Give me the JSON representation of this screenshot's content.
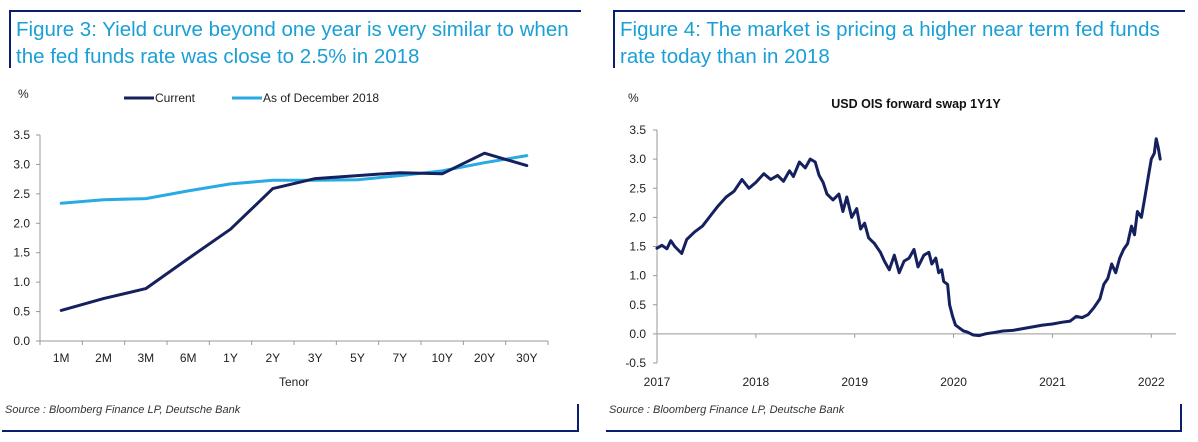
{
  "colors": {
    "title": "#1a9fd6",
    "navy": "#15205e",
    "lightblue": "#29aae2",
    "rule": "#0a1e6e"
  },
  "chart_data": [
    {
      "type": "line",
      "title": "Figure 3: Yield curve beyond one year is very similar to when the fed funds rate was close to 2.5% in 2018",
      "unit": "%",
      "xlabel": "Tenor",
      "categories": [
        "1M",
        "2M",
        "3M",
        "6M",
        "1Y",
        "2Y",
        "3Y",
        "5Y",
        "7Y",
        "10Y",
        "20Y",
        "30Y"
      ],
      "ylim": [
        0,
        3.5
      ],
      "yticks": [
        "0.0",
        "0.5",
        "1.0",
        "1.5",
        "2.0",
        "2.5",
        "3.0",
        "3.5"
      ],
      "series": [
        {
          "name": "Current",
          "color": "#15205e",
          "values": [
            0.52,
            0.72,
            0.89,
            1.4,
            1.9,
            2.59,
            2.76,
            2.81,
            2.86,
            2.84,
            3.19,
            2.98
          ]
        },
        {
          "name": "As of December 2018",
          "color": "#29aae2",
          "values": [
            2.34,
            2.4,
            2.42,
            2.55,
            2.67,
            2.73,
            2.73,
            2.74,
            2.81,
            2.89,
            3.03,
            3.15
          ]
        }
      ],
      "legend": "top",
      "source": "Source : Bloomberg Finance LP, Deutsche Bank"
    },
    {
      "type": "line",
      "title": "Figure 4: The market is pricing a higher near term fed funds rate today than in 2018",
      "subtitle": "USD OIS forward swap 1Y1Y",
      "unit": "%",
      "xlim": [
        2017,
        2022.25
      ],
      "ylim": [
        -0.5,
        3.5
      ],
      "xticks": [
        "2017",
        "2018",
        "2019",
        "2020",
        "2021",
        "2022"
      ],
      "yticks": [
        "-0.5",
        "0.0",
        "0.5",
        "1.0",
        "1.5",
        "2.0",
        "2.5",
        "3.0",
        "3.5"
      ],
      "series": [
        {
          "name": "USD OIS forward swap 1Y1Y",
          "color": "#15205e",
          "points": [
            [
              2017.0,
              1.47
            ],
            [
              2017.05,
              1.52
            ],
            [
              2017.1,
              1.46
            ],
            [
              2017.14,
              1.6
            ],
            [
              2017.18,
              1.5
            ],
            [
              2017.25,
              1.38
            ],
            [
              2017.3,
              1.62
            ],
            [
              2017.38,
              1.75
            ],
            [
              2017.46,
              1.85
            ],
            [
              2017.55,
              2.05
            ],
            [
              2017.62,
              2.2
            ],
            [
              2017.7,
              2.35
            ],
            [
              2017.78,
              2.45
            ],
            [
              2017.86,
              2.65
            ],
            [
              2017.93,
              2.5
            ],
            [
              2018.0,
              2.6
            ],
            [
              2018.08,
              2.75
            ],
            [
              2018.15,
              2.65
            ],
            [
              2018.22,
              2.72
            ],
            [
              2018.28,
              2.62
            ],
            [
              2018.34,
              2.8
            ],
            [
              2018.38,
              2.7
            ],
            [
              2018.44,
              2.95
            ],
            [
              2018.5,
              2.85
            ],
            [
              2018.55,
              3.0
            ],
            [
              2018.6,
              2.95
            ],
            [
              2018.64,
              2.72
            ],
            [
              2018.68,
              2.6
            ],
            [
              2018.72,
              2.4
            ],
            [
              2018.78,
              2.3
            ],
            [
              2018.84,
              2.4
            ],
            [
              2018.88,
              2.1
            ],
            [
              2018.92,
              2.35
            ],
            [
              2018.97,
              2.0
            ],
            [
              2019.02,
              2.15
            ],
            [
              2019.06,
              1.8
            ],
            [
              2019.1,
              1.9
            ],
            [
              2019.14,
              1.65
            ],
            [
              2019.2,
              1.55
            ],
            [
              2019.26,
              1.4
            ],
            [
              2019.3,
              1.25
            ],
            [
              2019.35,
              1.1
            ],
            [
              2019.4,
              1.35
            ],
            [
              2019.45,
              1.05
            ],
            [
              2019.5,
              1.25
            ],
            [
              2019.55,
              1.3
            ],
            [
              2019.6,
              1.45
            ],
            [
              2019.64,
              1.15
            ],
            [
              2019.7,
              1.35
            ],
            [
              2019.75,
              1.4
            ],
            [
              2019.78,
              1.2
            ],
            [
              2019.82,
              1.3
            ],
            [
              2019.85,
              1.05
            ],
            [
              2019.88,
              1.1
            ],
            [
              2019.9,
              0.9
            ],
            [
              2019.94,
              0.85
            ],
            [
              2019.96,
              0.5
            ],
            [
              2019.99,
              0.3
            ],
            [
              2020.02,
              0.15
            ],
            [
              2020.06,
              0.1
            ],
            [
              2020.1,
              0.05
            ],
            [
              2020.14,
              0.03
            ],
            [
              2020.2,
              -0.02
            ],
            [
              2020.26,
              -0.03
            ],
            [
              2020.32,
              0.0
            ],
            [
              2020.4,
              0.02
            ],
            [
              2020.5,
              0.05
            ],
            [
              2020.6,
              0.06
            ],
            [
              2020.7,
              0.09
            ],
            [
              2020.8,
              0.12
            ],
            [
              2020.9,
              0.15
            ],
            [
              2021.0,
              0.17
            ],
            [
              2021.1,
              0.2
            ],
            [
              2021.18,
              0.22
            ],
            [
              2021.24,
              0.3
            ],
            [
              2021.3,
              0.28
            ],
            [
              2021.36,
              0.33
            ],
            [
              2021.42,
              0.45
            ],
            [
              2021.48,
              0.6
            ],
            [
              2021.52,
              0.85
            ],
            [
              2021.56,
              0.95
            ],
            [
              2021.6,
              1.2
            ],
            [
              2021.64,
              1.05
            ],
            [
              2021.68,
              1.3
            ],
            [
              2021.72,
              1.45
            ],
            [
              2021.76,
              1.55
            ],
            [
              2021.8,
              1.85
            ],
            [
              2021.83,
              1.7
            ],
            [
              2021.86,
              2.1
            ],
            [
              2021.9,
              2.0
            ],
            [
              2021.94,
              2.4
            ],
            [
              2021.97,
              2.7
            ],
            [
              2022.0,
              3.0
            ],
            [
              2022.03,
              3.1
            ],
            [
              2022.05,
              3.35
            ],
            [
              2022.07,
              3.2
            ],
            [
              2022.09,
              3.0
            ]
          ]
        }
      ],
      "source": "Source : Bloomberg Finance LP, Deutsche Bank"
    }
  ]
}
